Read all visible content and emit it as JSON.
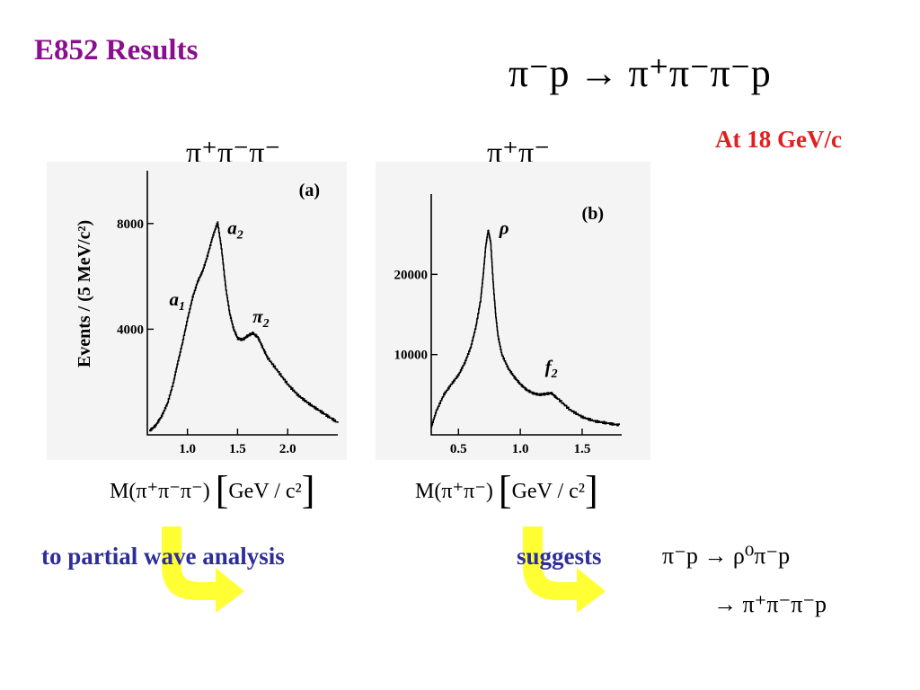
{
  "slide": {
    "title": "E852 Results",
    "reaction": "π⁻p → π⁺π⁻π⁻p",
    "beam_energy": "At 18 GeV/c",
    "bottom_left_text": "to partial wave analysis",
    "bottom_right_text": "suggests",
    "reaction2_line1": "π⁻p → ρ⁰π⁻p",
    "reaction2_line2": "→ π⁺π⁻π⁻p"
  },
  "panels": [
    {
      "header": "π⁺π⁻π⁻",
      "mass_label": "M(π⁺π⁻π⁻)",
      "unit_label": "GeV / c²"
    },
    {
      "header": "π⁺π⁻",
      "mass_label": "M(π⁺π⁻)",
      "unit_label": "GeV / c²"
    }
  ],
  "colors": {
    "title": "#8a0f8f",
    "energy": "#e02020",
    "blue_text": "#2e2e9a",
    "arrow": "#ffff33"
  },
  "chart_data": [
    {
      "type": "line",
      "panel_tag": "(a)",
      "ylabel": "Events / (5 MeV/c²)",
      "xlabel": "",
      "xlim": [
        0.6,
        2.5
      ],
      "ylim": [
        0,
        10000
      ],
      "xticks": [
        1.0,
        1.5,
        2.0
      ],
      "xtick_labels": [
        "1.0",
        "1.5",
        "2.0"
      ],
      "yticks": [
        4000,
        8000
      ],
      "ytick_labels": [
        "4000",
        "8000"
      ],
      "annotations": [
        {
          "text": "a",
          "sub": "1",
          "x": 0.82,
          "y": 4900
        },
        {
          "text": "a",
          "sub": "2",
          "x": 1.4,
          "y": 7600
        },
        {
          "text": "π",
          "sub": "2",
          "x": 1.65,
          "y": 4250
        }
      ],
      "series": [
        {
          "x": [
            0.62,
            0.68,
            0.74,
            0.8,
            0.86,
            0.9,
            0.95,
            1.0,
            1.05,
            1.1,
            1.15,
            1.2,
            1.25,
            1.3,
            1.34,
            1.38,
            1.42,
            1.46,
            1.5,
            1.55,
            1.6,
            1.65,
            1.7,
            1.75,
            1.8,
            1.9,
            2.0,
            2.1,
            2.2,
            2.3,
            2.4,
            2.5
          ],
          "y": [
            150,
            350,
            700,
            1200,
            2000,
            2700,
            3500,
            4400,
            5200,
            5800,
            6200,
            6800,
            7500,
            8050,
            7000,
            5600,
            4600,
            4000,
            3650,
            3600,
            3750,
            3850,
            3700,
            3300,
            2900,
            2400,
            1900,
            1500,
            1200,
            950,
            700,
            450
          ]
        }
      ]
    },
    {
      "type": "line",
      "panel_tag": "(b)",
      "ylabel": "",
      "xlabel": "",
      "xlim": [
        0.28,
        1.82
      ],
      "ylim": [
        0,
        30000
      ],
      "xticks": [
        0.5,
        1.0,
        1.5
      ],
      "xtick_labels": [
        "0.5",
        "1.0",
        "1.5"
      ],
      "yticks": [
        10000,
        20000
      ],
      "ytick_labels": [
        "10000",
        "20000"
      ],
      "annotations": [
        {
          "text": "ρ",
          "sub": "",
          "x": 0.83,
          "y": 25000
        },
        {
          "text": "f",
          "sub": "2",
          "x": 1.2,
          "y": 7700
        }
      ],
      "series": [
        {
          "x": [
            0.28,
            0.32,
            0.38,
            0.44,
            0.5,
            0.55,
            0.6,
            0.64,
            0.68,
            0.7,
            0.72,
            0.74,
            0.76,
            0.78,
            0.8,
            0.82,
            0.85,
            0.9,
            0.95,
            1.0,
            1.05,
            1.1,
            1.15,
            1.2,
            1.25,
            1.3,
            1.4,
            1.5,
            1.6,
            1.7,
            1.8
          ],
          "y": [
            1000,
            3000,
            5000,
            6300,
            7500,
            9000,
            11000,
            13500,
            17000,
            20000,
            23500,
            25500,
            24000,
            19000,
            15000,
            12200,
            10000,
            8300,
            7200,
            6300,
            5600,
            5200,
            5000,
            5100,
            5200,
            4500,
            3100,
            2200,
            1700,
            1450,
            1200
          ]
        }
      ]
    }
  ]
}
